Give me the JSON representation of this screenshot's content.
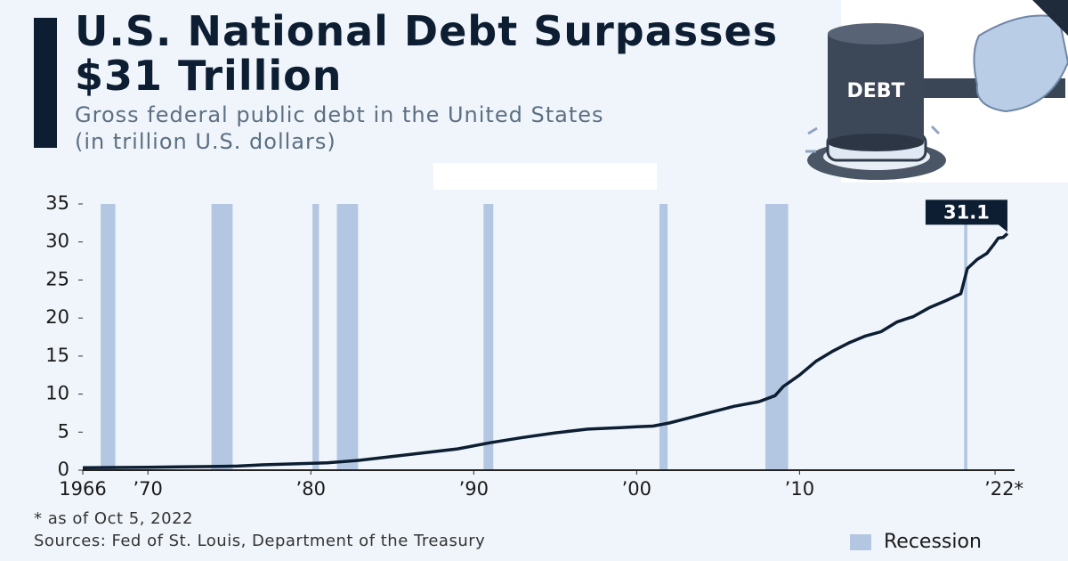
{
  "chart_data": {
    "type": "line",
    "title": "U.S. National Debt Surpasses $31 Trillion",
    "subtitle": "Gross federal public debt in the United States",
    "unit": "(in trillion U.S. dollars)",
    "x": [
      1966,
      1968,
      1970,
      1972,
      1974,
      1975.5,
      1977,
      1979,
      1981,
      1983,
      1985,
      1987,
      1989,
      1991,
      1993,
      1995,
      1997,
      1999,
      2000,
      2001,
      2002,
      2004,
      2006,
      2007.5,
      2008.5,
      2009,
      2010,
      2011,
      2012,
      2013,
      2014,
      2015,
      2016,
      2017,
      2018,
      2019,
      2019.9,
      2020.3,
      2020.9,
      2021.5,
      2021.9,
      2022.2,
      2022.5,
      2022.76
    ],
    "values": [
      0.32,
      0.35,
      0.38,
      0.43,
      0.48,
      0.54,
      0.7,
      0.83,
      0.96,
      1.3,
      1.8,
      2.3,
      2.8,
      3.6,
      4.3,
      4.9,
      5.4,
      5.6,
      5.7,
      5.8,
      6.2,
      7.3,
      8.4,
      9.0,
      9.8,
      11.0,
      12.5,
      14.3,
      15.6,
      16.7,
      17.6,
      18.2,
      19.5,
      20.2,
      21.4,
      22.3,
      23.2,
      26.5,
      27.7,
      28.5,
      29.6,
      30.5,
      30.6,
      31.1
    ],
    "color": "#0d1e33",
    "xlim": [
      1966,
      2023.2
    ],
    "ylim": [
      0,
      35
    ],
    "yticks": [
      0,
      5,
      10,
      15,
      20,
      25,
      30,
      35
    ],
    "xticks": [
      {
        "value": 1966,
        "label": "1966"
      },
      {
        "value": 1970,
        "label": "’70"
      },
      {
        "value": 1980,
        "label": "’80"
      },
      {
        "value": 1990,
        "label": "’90"
      },
      {
        "value": 2000,
        "label": "’00"
      },
      {
        "value": 2010,
        "label": "’10"
      },
      {
        "value": 2022,
        "label": "’22*"
      }
    ],
    "shading": {
      "name": "Recession",
      "color": "#b3c7e2",
      "ranges": [
        [
          1967.1,
          1968.0
        ],
        [
          1973.9,
          1975.2
        ],
        [
          1980.1,
          1980.5
        ],
        [
          1981.6,
          1982.9
        ],
        [
          1990.6,
          1991.2
        ],
        [
          2001.4,
          2001.9
        ],
        [
          2007.9,
          2009.3
        ],
        [
          2020.1,
          2020.3
        ]
      ]
    },
    "footnote": "* as of Oct 5, 2022",
    "source": "Sources: Fed of St. Louis, Department of the Treasury",
    "illustration_label": "DEBT"
  }
}
